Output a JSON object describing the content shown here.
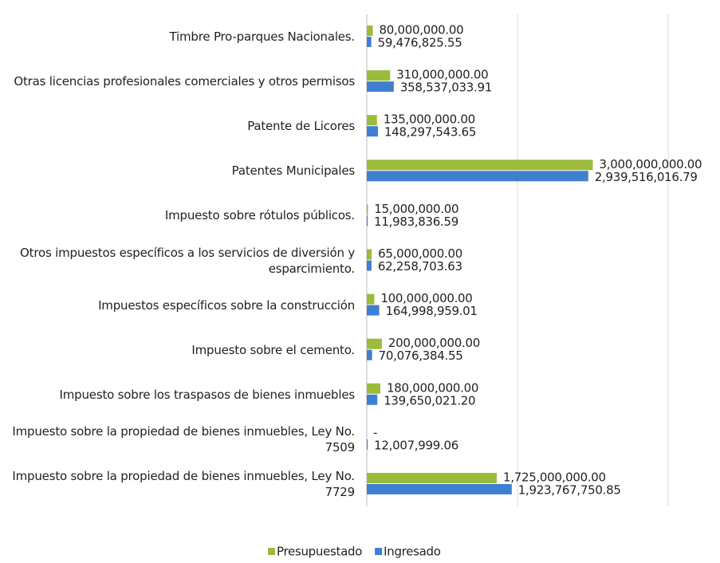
{
  "chart_data": {
    "type": "bar",
    "orientation": "horizontal",
    "categories": [
      "Timbre Pro-parques Nacionales.",
      "Otras licencias profesionales comerciales y otros permisos",
      "Patente de Licores",
      "Patentes Municipales",
      "Impuesto sobre rótulos públicos.",
      "Otros impuestos específicos a los servicios de diversión y esparcimiento.",
      "Impuestos específicos sobre la construcción",
      "Impuesto sobre el cemento.",
      "Impuesto sobre los traspasos de bienes inmuebles",
      "Impuesto sobre la propiedad de bienes inmuebles, Ley No. 7509",
      "Impuesto sobre la propiedad de bienes inmuebles, Ley No. 7729"
    ],
    "series": [
      {
        "name": "Presupuestado",
        "color": "#9bbb3b",
        "values": [
          80000000.0,
          310000000.0,
          135000000.0,
          3000000000.0,
          15000000.0,
          65000000.0,
          100000000.0,
          200000000.0,
          180000000.0,
          0,
          1725000000.0
        ],
        "value_labels": [
          "80,000,000.00",
          "310,000,000.00",
          "135,000,000.00",
          "3,000,000,000.00",
          "15,000,000.00",
          "65,000,000.00",
          "100,000,000.00",
          "200,000,000.00",
          "180,000,000.00",
          "-",
          "1,725,000,000.00"
        ]
      },
      {
        "name": "Ingresado",
        "color": "#3f7fcf",
        "values": [
          59476825.55,
          358537033.91,
          148297543.65,
          2939516016.79,
          11983836.59,
          62258703.63,
          164998959.01,
          70076384.55,
          139650021.2,
          12007999.06,
          1923767750.85
        ],
        "value_labels": [
          "59,476,825.55",
          "358,537,033.91",
          "148,297,543.65",
          "2,939,516,016.79",
          "11,983,836.59",
          "62,258,703.63",
          "164,998,959.01",
          "70,076,384.55",
          "139,650,021.20",
          "12,007,999.06",
          "1,923,767,750.85"
        ]
      }
    ],
    "xlim": [
      0,
      4000000000
    ],
    "xticks": [
      0,
      2000000000,
      4000000000
    ],
    "grid": true,
    "legend": "bottom"
  }
}
